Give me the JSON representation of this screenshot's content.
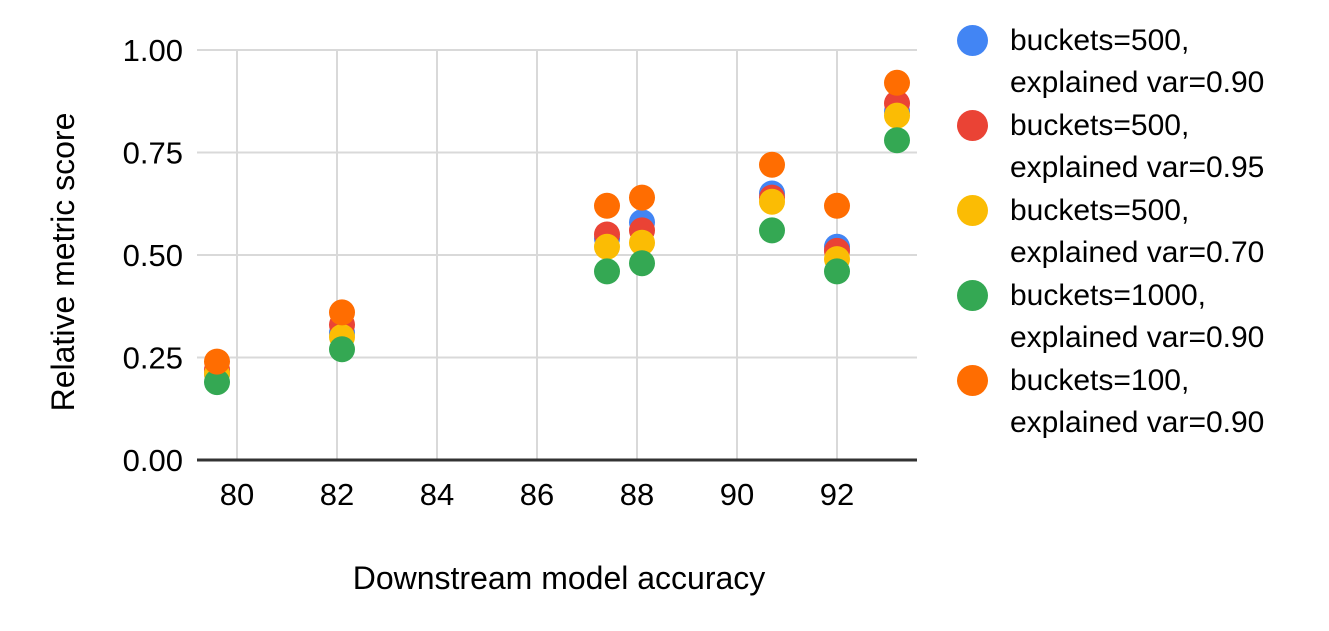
{
  "chart_data": {
    "type": "scatter",
    "title": "",
    "xlabel": "Downstream model accuracy",
    "ylabel": "Relative metric score",
    "xlim": [
      79.2,
      93.6
    ],
    "ylim": [
      0,
      1
    ],
    "grid": true,
    "legend_position": "right",
    "x_ticks": [
      "80",
      "82",
      "84",
      "86",
      "88",
      "90",
      "92"
    ],
    "x_tick_values": [
      80,
      82,
      84,
      86,
      88,
      90,
      92
    ],
    "y_ticks": [
      "0.00",
      "0.25",
      "0.50",
      "0.75",
      "1.00"
    ],
    "y_tick_values": [
      0,
      0.25,
      0.5,
      0.75,
      1
    ],
    "x": [
      79.6,
      82.1,
      87.4,
      88.1,
      90.7,
      92.0,
      93.2
    ],
    "series": [
      {
        "name": "buckets=500, explained var=0.90",
        "label_lines": [
          "buckets=500,",
          "explained var=0.90"
        ],
        "color_name": "blue",
        "color": "#4285F4",
        "values": [
          0.21,
          0.31,
          0.54,
          0.58,
          0.65,
          0.52,
          0.85
        ]
      },
      {
        "name": "buckets=500, explained var=0.95",
        "label_lines": [
          "buckets=500,",
          "explained var=0.95"
        ],
        "color_name": "red",
        "color": "#EA4335",
        "values": [
          0.22,
          0.33,
          0.55,
          0.56,
          0.64,
          0.51,
          0.87
        ]
      },
      {
        "name": "buckets=500, explained var=0.70",
        "label_lines": [
          "buckets=500,",
          "explained var=0.70"
        ],
        "color_name": "yellow",
        "color": "#FBBC04",
        "values": [
          0.21,
          0.3,
          0.52,
          0.53,
          0.63,
          0.49,
          0.84
        ]
      },
      {
        "name": "buckets=1000, explained var=0.90",
        "label_lines": [
          "buckets=1000,",
          "explained var=0.90"
        ],
        "color_name": "green",
        "color": "#34A853",
        "values": [
          0.19,
          0.27,
          0.46,
          0.48,
          0.56,
          0.46,
          0.78
        ]
      },
      {
        "name": "buckets=100, explained var=0.90",
        "label_lines": [
          "buckets=100,",
          "explained var=0.90"
        ],
        "color_name": "orange",
        "color": "#FF6D01",
        "values": [
          0.24,
          0.36,
          0.62,
          0.64,
          0.72,
          0.62,
          0.92
        ]
      }
    ]
  },
  "colors": {
    "gridline": "#D9D9D9",
    "axis_line": "#333333",
    "text": "#000000",
    "background": "#FFFFFF"
  }
}
